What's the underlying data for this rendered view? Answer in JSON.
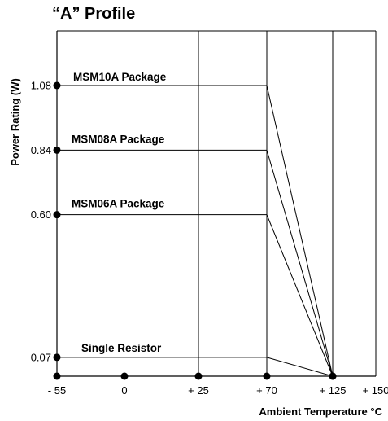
{
  "title": "“A” Profile",
  "chart_data": {
    "type": "line",
    "title": "“A” Profile",
    "xlabel": "Ambient Temperature °C",
    "ylabel": "Power Rating (W)",
    "x_ticks": [
      {
        "value": -55,
        "label": "- 55"
      },
      {
        "value": 0,
        "label": "0"
      },
      {
        "value": 25,
        "label": "+ 25"
      },
      {
        "value": 70,
        "label": "+ 70"
      },
      {
        "value": 125,
        "label": "+ 125"
      },
      {
        "value": 150,
        "label": "+ 150"
      }
    ],
    "y_ticks": [
      {
        "value": 0.07,
        "label": "0.07"
      },
      {
        "value": 0.6,
        "label": "0.60"
      },
      {
        "value": 0.84,
        "label": "0.84"
      },
      {
        "value": 1.08,
        "label": "1.08"
      }
    ],
    "series": [
      {
        "name": "MSM10A Package",
        "x": [
          -55,
          70,
          125
        ],
        "y": [
          1.08,
          1.08,
          0
        ]
      },
      {
        "name": "MSM08A Package",
        "x": [
          -55,
          70,
          125
        ],
        "y": [
          0.84,
          0.84,
          0
        ]
      },
      {
        "name": "MSM06A Package",
        "x": [
          -55,
          70,
          125
        ],
        "y": [
          0.6,
          0.6,
          0
        ]
      },
      {
        "name": "Single Resistor",
        "x": [
          -55,
          70,
          125
        ],
        "y": [
          0.07,
          0.07,
          0
        ]
      }
    ],
    "grid": true,
    "colors": {
      "line": "#000000",
      "marker": "#000000"
    }
  }
}
